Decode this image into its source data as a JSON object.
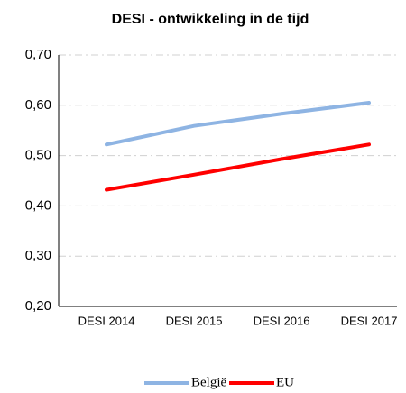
{
  "chart_data": {
    "type": "line",
    "title": "DESI - ontwikkeling in de tijd",
    "categories": [
      "DESI 2014",
      "DESI 2015",
      "DESI 2016",
      "DESI 2017"
    ],
    "series": [
      {
        "name": "België",
        "color": "#8eb4e3",
        "values": [
          0.522,
          0.559,
          0.583,
          0.605
        ]
      },
      {
        "name": "EU",
        "color": "#ff0000",
        "values": [
          0.432,
          0.462,
          0.493,
          0.522
        ]
      }
    ],
    "ylim": [
      0.2,
      0.7
    ],
    "yticks": [
      {
        "value": 0.2,
        "label": "0,20"
      },
      {
        "value": 0.3,
        "label": "0,30"
      },
      {
        "value": 0.4,
        "label": "0,40"
      },
      {
        "value": 0.5,
        "label": "0,50"
      },
      {
        "value": 0.6,
        "label": "0,60"
      },
      {
        "value": 0.7,
        "label": "0,70"
      }
    ],
    "grid": true,
    "legend": "bottom"
  }
}
